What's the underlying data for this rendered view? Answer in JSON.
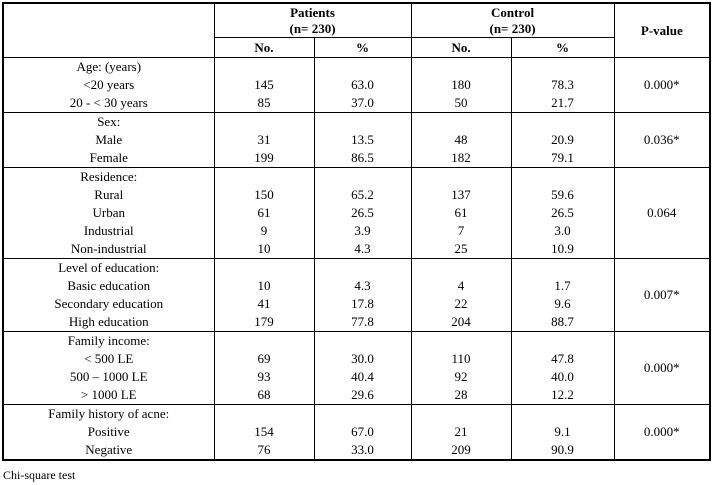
{
  "table": {
    "header": {
      "patients_line1": "Patients",
      "patients_line2": "(n= 230)",
      "control_line1": "Control",
      "control_line2": "(n= 230)",
      "p_value": "P-value",
      "no": "No.",
      "pct": "%"
    },
    "sections": [
      {
        "label": "Age: (years)",
        "p_value": "0.000*",
        "rows": [
          {
            "label": "<20 years",
            "values": [
              "145",
              "63.0",
              "180",
              "78.3"
            ]
          },
          {
            "label": "20 - < 30 years",
            "values": [
              "85",
              "37.0",
              "50",
              "21.7"
            ]
          }
        ]
      },
      {
        "label": "Sex:",
        "p_value": "0.036*",
        "rows": [
          {
            "label": "Male",
            "values": [
              "31",
              "13.5",
              "48",
              "20.9"
            ]
          },
          {
            "label": "Female",
            "values": [
              "199",
              "86.5",
              "182",
              "79.1"
            ]
          }
        ]
      },
      {
        "label": "Residence:",
        "p_value": "0.064",
        "rows": [
          {
            "label": "Rural",
            "values": [
              "150",
              "65.2",
              "137",
              "59.6"
            ]
          },
          {
            "label": "Urban",
            "values": [
              "61",
              "26.5",
              "61",
              "26.5"
            ]
          },
          {
            "label": "Industrial",
            "values": [
              "9",
              "3.9",
              "7",
              "3.0"
            ]
          },
          {
            "label": "Non-industrial",
            "values": [
              "10",
              "4.3",
              "25",
              "10.9"
            ]
          }
        ]
      },
      {
        "label": "Level of education:",
        "p_value": "0.007*",
        "rows": [
          {
            "label": "Basic education",
            "values": [
              "10",
              "4.3",
              "4",
              "1.7"
            ]
          },
          {
            "label": "Secondary education",
            "values": [
              "41",
              "17.8",
              "22",
              "9.6"
            ]
          },
          {
            "label": "High education",
            "values": [
              "179",
              "77.8",
              "204",
              "88.7"
            ]
          }
        ]
      },
      {
        "label": "Family income:",
        "p_value": "0.000*",
        "rows": [
          {
            "label": "< 500 LE",
            "values": [
              "69",
              "30.0",
              "110",
              "47.8"
            ]
          },
          {
            "label": "500 – 1000 LE",
            "values": [
              "93",
              "40.4",
              "92",
              "40.0"
            ]
          },
          {
            "label": "> 1000 LE",
            "values": [
              "68",
              "29.6",
              "28",
              "12.2"
            ]
          }
        ]
      },
      {
        "label": "Family history of acne:",
        "p_value": "0.000*",
        "rows": [
          {
            "label": "Positive",
            "values": [
              "154",
              "67.0",
              "21",
              "9.1"
            ]
          },
          {
            "label": "Negative",
            "values": [
              "76",
              "33.0",
              "209",
              "90.9"
            ]
          }
        ]
      }
    ],
    "footnote": "Chi-square test"
  }
}
